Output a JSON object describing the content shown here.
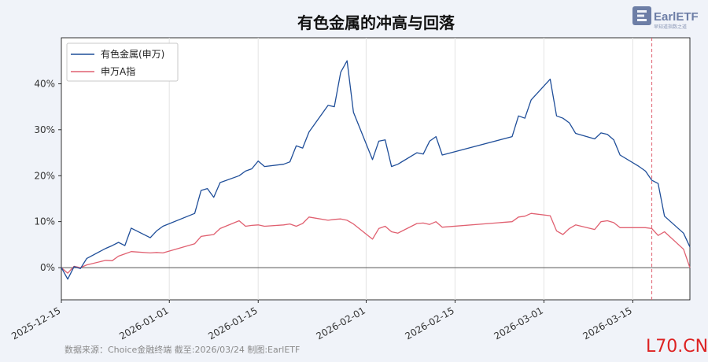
{
  "chart_data": {
    "type": "line",
    "title": "有色金属的冲高与回落",
    "xlabel": "",
    "ylabel": "",
    "x_range": [
      "2025-12-15",
      "2026-03-24"
    ],
    "ylim": [
      -7,
      50
    ],
    "y_ticks": [
      0,
      10,
      20,
      30,
      40
    ],
    "y_tick_labels": [
      "0%",
      "10%",
      "20%",
      "30%",
      "40%"
    ],
    "x_ticks": [
      "2025-12-15",
      "2026-01-01",
      "2026-01-15",
      "2026-02-01",
      "2026-02-15",
      "2026-03-01",
      "2026-03-15"
    ],
    "x_tick_labels": [
      "2025-12-15",
      "2026-01-01",
      "2026-01-15",
      "2026-02-01",
      "2026-02-15",
      "2026-03-01",
      "2026-03-15"
    ],
    "grid": "vertical",
    "legend_position": "top-left",
    "reference_line": {
      "type": "vertical",
      "x": "2026-03-18",
      "style": "dashed",
      "color": "#e06070"
    },
    "zero_line": true,
    "series": [
      {
        "name": "有色金属(申万)",
        "color": "#1f4e99",
        "points": [
          [
            "2025-12-15",
            0
          ],
          [
            "2025-12-16",
            -2.5
          ],
          [
            "2025-12-17",
            0.2
          ],
          [
            "2025-12-18",
            -0.2
          ],
          [
            "2025-12-19",
            2.0
          ],
          [
            "2025-12-22",
            4.2
          ],
          [
            "2025-12-23",
            4.8
          ],
          [
            "2025-12-24",
            5.5
          ],
          [
            "2025-12-25",
            4.8
          ],
          [
            "2025-12-26",
            8.6
          ],
          [
            "2025-12-29",
            6.5
          ],
          [
            "2025-12-30",
            8.0
          ],
          [
            "2025-12-31",
            9.0
          ],
          [
            "2026-01-05",
            11.8
          ],
          [
            "2026-01-06",
            16.8
          ],
          [
            "2026-01-07",
            17.2
          ],
          [
            "2026-01-08",
            15.3
          ],
          [
            "2026-01-09",
            18.5
          ],
          [
            "2026-01-12",
            20.0
          ],
          [
            "2026-01-13",
            21.0
          ],
          [
            "2026-01-14",
            21.5
          ],
          [
            "2026-01-15",
            23.2
          ],
          [
            "2026-01-16",
            22.0
          ],
          [
            "2026-01-19",
            22.5
          ],
          [
            "2026-01-20",
            23.0
          ],
          [
            "2026-01-21",
            26.5
          ],
          [
            "2026-01-22",
            26.0
          ],
          [
            "2026-01-23",
            29.5
          ],
          [
            "2026-01-26",
            35.3
          ],
          [
            "2026-01-27",
            35.0
          ],
          [
            "2026-01-28",
            42.5
          ],
          [
            "2026-01-29",
            45.0
          ],
          [
            "2026-01-30",
            33.8
          ],
          [
            "2026-02-02",
            23.5
          ],
          [
            "2026-02-03",
            27.5
          ],
          [
            "2026-02-04",
            27.8
          ],
          [
            "2026-02-05",
            22.0
          ],
          [
            "2026-02-06",
            22.5
          ],
          [
            "2026-02-09",
            25.0
          ],
          [
            "2026-02-10",
            24.7
          ],
          [
            "2026-02-11",
            27.5
          ],
          [
            "2026-02-12",
            28.5
          ],
          [
            "2026-02-13",
            24.5
          ],
          [
            "2026-02-24",
            28.5
          ],
          [
            "2026-02-25",
            33.0
          ],
          [
            "2026-02-26",
            32.5
          ],
          [
            "2026-02-27",
            36.5
          ],
          [
            "2026-03-02",
            41.0
          ],
          [
            "2026-03-03",
            33.0
          ],
          [
            "2026-03-04",
            32.5
          ],
          [
            "2026-03-05",
            31.5
          ],
          [
            "2026-03-06",
            29.2
          ],
          [
            "2026-03-09",
            28.0
          ],
          [
            "2026-03-10",
            29.3
          ],
          [
            "2026-03-11",
            29.0
          ],
          [
            "2026-03-12",
            27.8
          ],
          [
            "2026-03-13",
            24.5
          ],
          [
            "2026-03-16",
            22.0
          ],
          [
            "2026-03-17",
            21.0
          ],
          [
            "2026-03-18",
            19.0
          ],
          [
            "2026-03-19",
            18.3
          ],
          [
            "2026-03-20",
            11.2
          ],
          [
            "2026-03-23",
            7.5
          ],
          [
            "2026-03-24",
            4.5
          ]
        ]
      },
      {
        "name": "申万A指",
        "color": "#e06070",
        "points": [
          [
            "2025-12-15",
            0
          ],
          [
            "2025-12-16",
            -1.2
          ],
          [
            "2025-12-17",
            0.3
          ],
          [
            "2025-12-18",
            0
          ],
          [
            "2025-12-19",
            0.6
          ],
          [
            "2025-12-22",
            1.6
          ],
          [
            "2025-12-23",
            1.5
          ],
          [
            "2025-12-24",
            2.5
          ],
          [
            "2025-12-25",
            3.0
          ],
          [
            "2025-12-26",
            3.5
          ],
          [
            "2025-12-29",
            3.2
          ],
          [
            "2025-12-30",
            3.3
          ],
          [
            "2025-12-31",
            3.2
          ],
          [
            "2026-01-05",
            5.2
          ],
          [
            "2026-01-06",
            6.8
          ],
          [
            "2026-01-07",
            7.0
          ],
          [
            "2026-01-08",
            7.2
          ],
          [
            "2026-01-09",
            8.5
          ],
          [
            "2026-01-12",
            10.2
          ],
          [
            "2026-01-13",
            9.0
          ],
          [
            "2026-01-14",
            9.2
          ],
          [
            "2026-01-15",
            9.3
          ],
          [
            "2026-01-16",
            9.0
          ],
          [
            "2026-01-19",
            9.3
          ],
          [
            "2026-01-20",
            9.5
          ],
          [
            "2026-01-21",
            9.0
          ],
          [
            "2026-01-22",
            9.6
          ],
          [
            "2026-01-23",
            11.0
          ],
          [
            "2026-01-26",
            10.3
          ],
          [
            "2026-01-27",
            10.5
          ],
          [
            "2026-01-28",
            10.6
          ],
          [
            "2026-01-29",
            10.3
          ],
          [
            "2026-01-30",
            9.5
          ],
          [
            "2026-02-02",
            6.2
          ],
          [
            "2026-02-03",
            8.5
          ],
          [
            "2026-02-04",
            9.0
          ],
          [
            "2026-02-05",
            7.8
          ],
          [
            "2026-02-06",
            7.5
          ],
          [
            "2026-02-09",
            9.6
          ],
          [
            "2026-02-10",
            9.7
          ],
          [
            "2026-02-11",
            9.4
          ],
          [
            "2026-02-12",
            10.0
          ],
          [
            "2026-02-13",
            8.8
          ],
          [
            "2026-02-24",
            10.0
          ],
          [
            "2026-02-25",
            11.0
          ],
          [
            "2026-02-26",
            11.2
          ],
          [
            "2026-02-27",
            11.8
          ],
          [
            "2026-03-02",
            11.3
          ],
          [
            "2026-03-03",
            8.0
          ],
          [
            "2026-03-04",
            7.2
          ],
          [
            "2026-03-05",
            8.5
          ],
          [
            "2026-03-06",
            9.3
          ],
          [
            "2026-03-09",
            8.3
          ],
          [
            "2026-03-10",
            10.0
          ],
          [
            "2026-03-11",
            10.2
          ],
          [
            "2026-03-12",
            9.8
          ],
          [
            "2026-03-13",
            8.7
          ],
          [
            "2026-03-16",
            8.7
          ],
          [
            "2026-03-17",
            8.7
          ],
          [
            "2026-03-18",
            8.5
          ],
          [
            "2026-03-19",
            7.0
          ],
          [
            "2026-03-20",
            7.8
          ],
          [
            "2026-03-23",
            4.0
          ],
          [
            "2026-03-24",
            0
          ]
        ]
      }
    ]
  },
  "source_note": "数据来源：Choice金融终端 截至:2026/03/24 制图:EarlETF",
  "brand": {
    "name": "EarlETF",
    "tagline": "早知道指数之道"
  },
  "watermark": "L70.CN"
}
